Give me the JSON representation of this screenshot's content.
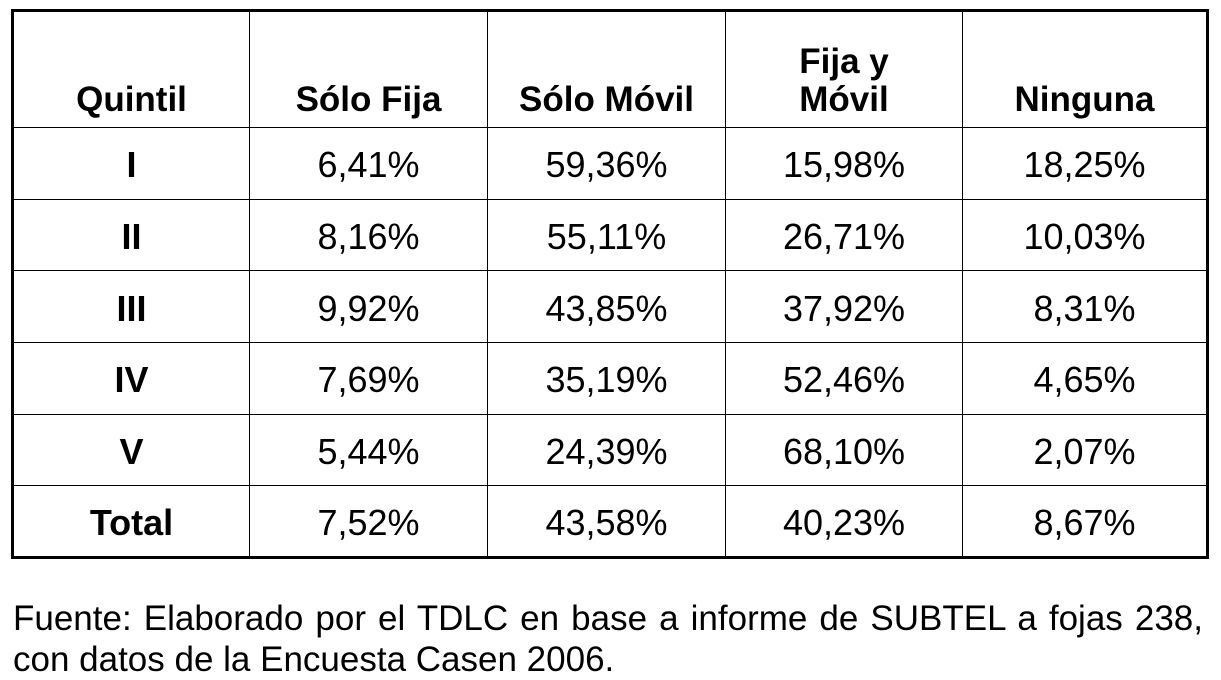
{
  "table": {
    "headers": {
      "quintil": "Quintil",
      "solo_fija": "Sólo Fija",
      "solo_movil": "Sólo Móvil",
      "fija_y_movil_line1": "Fija y",
      "fija_y_movil_line2": "Móvil",
      "ninguna": "Ninguna"
    },
    "rows": [
      {
        "quintil": "I",
        "solo_fija": "6,41%",
        "solo_movil": "59,36%",
        "fija_y_movil": "15,98%",
        "ninguna": "18,25%"
      },
      {
        "quintil": "II",
        "solo_fija": "8,16%",
        "solo_movil": "55,11%",
        "fija_y_movil": "26,71%",
        "ninguna": "10,03%"
      },
      {
        "quintil": "III",
        "solo_fija": "9,92%",
        "solo_movil": "43,85%",
        "fija_y_movil": "37,92%",
        "ninguna": "8,31%"
      },
      {
        "quintil": "IV",
        "solo_fija": "7,69%",
        "solo_movil": "35,19%",
        "fija_y_movil": "52,46%",
        "ninguna": "4,65%"
      },
      {
        "quintil": "V",
        "solo_fija": "5,44%",
        "solo_movil": "24,39%",
        "fija_y_movil": "68,10%",
        "ninguna": "2,07%"
      },
      {
        "quintil": "Total",
        "solo_fija": "7,52%",
        "solo_movil": "43,58%",
        "fija_y_movil": "40,23%",
        "ninguna": "8,67%"
      }
    ]
  },
  "source_note": "Fuente: Elaborado por el TDLC en base a informe de SUBTEL a fojas 238, con datos de la Encuesta Casen 2006."
}
